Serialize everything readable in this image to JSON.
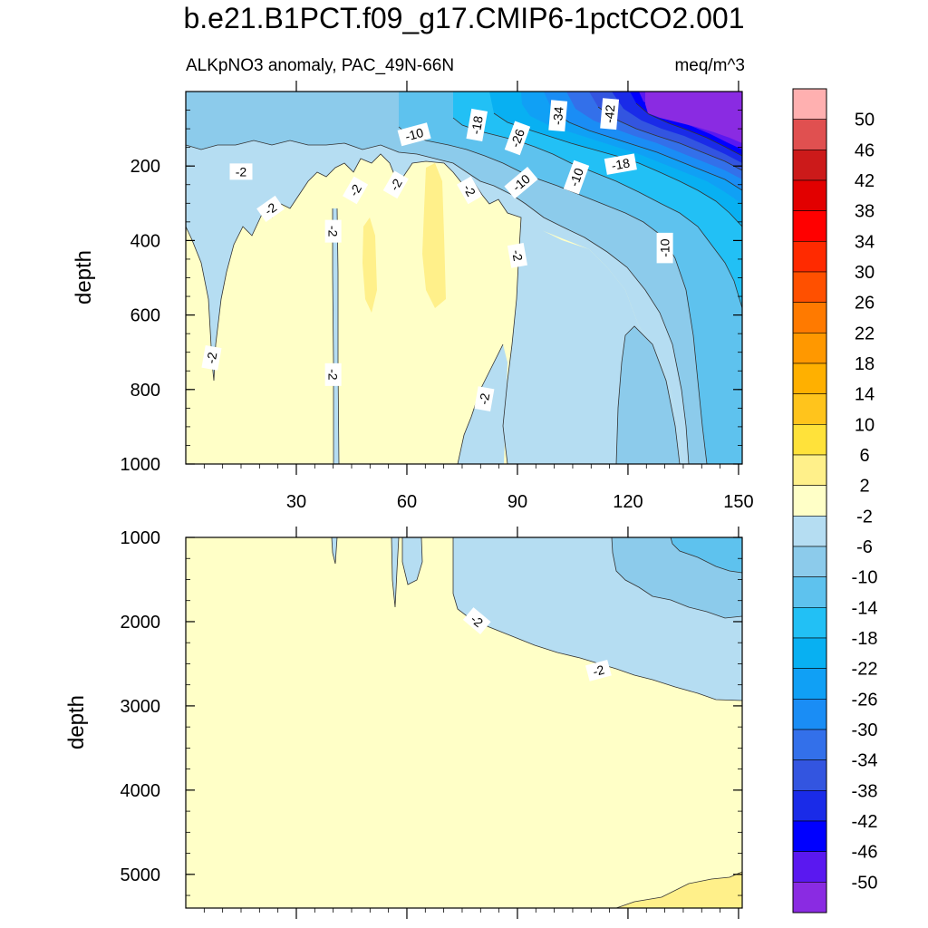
{
  "title": "b.e21.B1PCT.f09_g17.CMIP6-1pctCO2.001",
  "subtitle_left": "ALKpNO3 anomaly, PAC_49N-66N",
  "subtitle_right": "meq/m^3",
  "colors": {
    "c_m50": "#8a2be2",
    "c_m46": "#5a18f0",
    "c_m42": "#0000ff",
    "c_m38": "#1a2be8",
    "c_m34": "#3355e0",
    "c_m30": "#3370ea",
    "c_m26": "#1a8df5",
    "c_m22": "#10a0f5",
    "c_m18": "#08b0f2",
    "c_m14": "#22c0f5",
    "c_m10": "#5ec2ee",
    "c_m6": "#8ccbeb",
    "c_m2": "#b5ddf2",
    "c_p2": "#ffffc7",
    "c_p6": "#fff08a",
    "c_p10": "#ffe23a",
    "c_p14": "#ffc41c",
    "c_p18": "#ffb000",
    "c_p22": "#ff9800",
    "c_p26": "#ff7a00",
    "c_p30": "#ff5000",
    "c_p34": "#ff2a00",
    "c_p38": "#ff0000",
    "c_p42": "#e20000",
    "c_p46": "#cc1a1a",
    "c_p50": "#e05050",
    "c_top": "#ffb0b0"
  },
  "chart_data": [
    {
      "type": "filled_contour",
      "panel": "top",
      "ylabel": "depth",
      "xlim": [
        0,
        151
      ],
      "ylim": [
        1000,
        0
      ],
      "xticks": [
        30,
        60,
        90,
        120,
        150
      ],
      "xtick_labels": [
        "30",
        "60",
        "90",
        "120",
        "150"
      ],
      "yticks": [
        200,
        400,
        600,
        800,
        1000
      ],
      "ytick_labels": [
        "200",
        "400",
        "600",
        "800",
        "1000"
      ],
      "contour_labels": [
        {
          "text": "-10",
          "x": 62,
          "y": 115,
          "rot": -15
        },
        {
          "text": "-18",
          "x": 79,
          "y": 90,
          "rot": -80
        },
        {
          "text": "-26",
          "x": 90,
          "y": 125,
          "rot": -70
        },
        {
          "text": "-34",
          "x": 101,
          "y": 65,
          "rot": -85
        },
        {
          "text": "-42",
          "x": 115,
          "y": 60,
          "rot": -85
        },
        {
          "text": "-2",
          "x": 15,
          "y": 215,
          "rot": 0
        },
        {
          "text": "-2",
          "x": 23,
          "y": 315,
          "rot": -35
        },
        {
          "text": "-2",
          "x": 46,
          "y": 265,
          "rot": -60
        },
        {
          "text": "-2",
          "x": 57,
          "y": 250,
          "rot": -60
        },
        {
          "text": "-2",
          "x": 77,
          "y": 265,
          "rot": 60
        },
        {
          "text": "-10",
          "x": 91,
          "y": 245,
          "rot": -40
        },
        {
          "text": "-10",
          "x": 106,
          "y": 230,
          "rot": -70
        },
        {
          "text": "-18",
          "x": 118,
          "y": 195,
          "rot": -10
        },
        {
          "text": "-2",
          "x": 40,
          "y": 375,
          "rot": 90
        },
        {
          "text": "-2",
          "x": 90,
          "y": 440,
          "rot": 80
        },
        {
          "text": "-10",
          "x": 130,
          "y": 420,
          "rot": -90
        },
        {
          "text": "-2",
          "x": 7,
          "y": 715,
          "rot": -80
        },
        {
          "text": "-2",
          "x": 40,
          "y": 760,
          "rot": 90
        },
        {
          "text": "-2",
          "x": 81,
          "y": 825,
          "rot": -80
        }
      ]
    },
    {
      "type": "filled_contour",
      "panel": "bottom",
      "ylabel": "depth",
      "xlim": [
        0,
        151
      ],
      "ylim": [
        5400,
        1000
      ],
      "yticks": [
        1000,
        2000,
        3000,
        4000,
        5000
      ],
      "ytick_labels": [
        "1000",
        "2000",
        "3000",
        "4000",
        "5000"
      ],
      "contour_labels": [
        {
          "text": "-2",
          "x": 79,
          "y": 1990,
          "rot": 40
        },
        {
          "text": "-2",
          "x": 112,
          "y": 2580,
          "rot": -15
        }
      ]
    },
    {
      "type": "colorbar",
      "levels": [
        "50",
        "46",
        "42",
        "38",
        "34",
        "30",
        "26",
        "22",
        "18",
        "14",
        "10",
        "6",
        "2",
        "-2",
        "-6",
        "-10",
        "-14",
        "-18",
        "-22",
        "-26",
        "-30",
        "-34",
        "-38",
        "-42",
        "-46",
        "-50"
      ],
      "level_values": [
        50,
        46,
        42,
        38,
        34,
        30,
        26,
        22,
        18,
        14,
        10,
        6,
        2,
        -2,
        -6,
        -10,
        -14,
        -18,
        -22,
        -26,
        -30,
        -34,
        -38,
        -42,
        -46,
        -50
      ]
    }
  ]
}
